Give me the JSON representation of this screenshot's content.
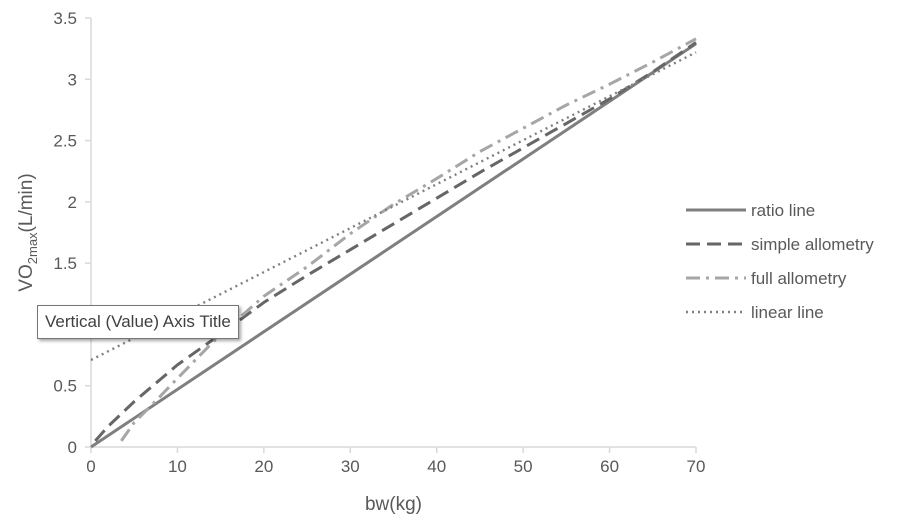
{
  "chart_data": {
    "type": "line",
    "xlabel": "bw(kg)",
    "ylabel_main": "VO",
    "ylabel_sub": "2max",
    "ylabel_rest": "(L/min)",
    "xlim": [
      0,
      70
    ],
    "ylim": [
      0,
      3.5
    ],
    "x_ticks": [
      0,
      10,
      20,
      30,
      40,
      50,
      60,
      70
    ],
    "y_ticks": [
      "0",
      "0.5",
      "1",
      "1.5",
      "2",
      "2.5",
      "3",
      "3.5"
    ],
    "grid": false,
    "legend_position": "right",
    "series": [
      {
        "name": "ratio line",
        "style": "solid",
        "color": "#7f7f7f",
        "x": [
          0,
          70
        ],
        "y": [
          0,
          3.29
        ]
      },
      {
        "name": "simple allometry",
        "style": "dashed",
        "color": "#666666",
        "x": [
          0.5,
          2,
          5,
          10,
          15,
          20,
          25,
          30,
          35,
          40,
          45,
          50,
          55,
          60,
          65,
          70
        ],
        "y": [
          0.05,
          0.17,
          0.37,
          0.67,
          0.92,
          1.18,
          1.4,
          1.61,
          1.82,
          2.03,
          2.24,
          2.44,
          2.64,
          2.84,
          3.06,
          3.3
        ]
      },
      {
        "name": "full allometry",
        "style": "dashdot",
        "color": "#a6a6a6",
        "x": [
          3.5,
          5,
          7,
          10,
          15,
          20,
          25,
          30,
          35,
          40,
          45,
          50,
          55,
          60,
          65,
          70
        ],
        "y": [
          0.05,
          0.2,
          0.34,
          0.56,
          0.92,
          1.23,
          1.47,
          1.74,
          1.98,
          2.19,
          2.41,
          2.6,
          2.79,
          2.96,
          3.14,
          3.33
        ]
      },
      {
        "name": "linear line",
        "style": "dotted",
        "color": "#808080",
        "x": [
          0,
          70
        ],
        "y": [
          0.71,
          3.22
        ]
      }
    ]
  },
  "tooltip": {
    "text": "Vertical (Value) Axis Title"
  }
}
